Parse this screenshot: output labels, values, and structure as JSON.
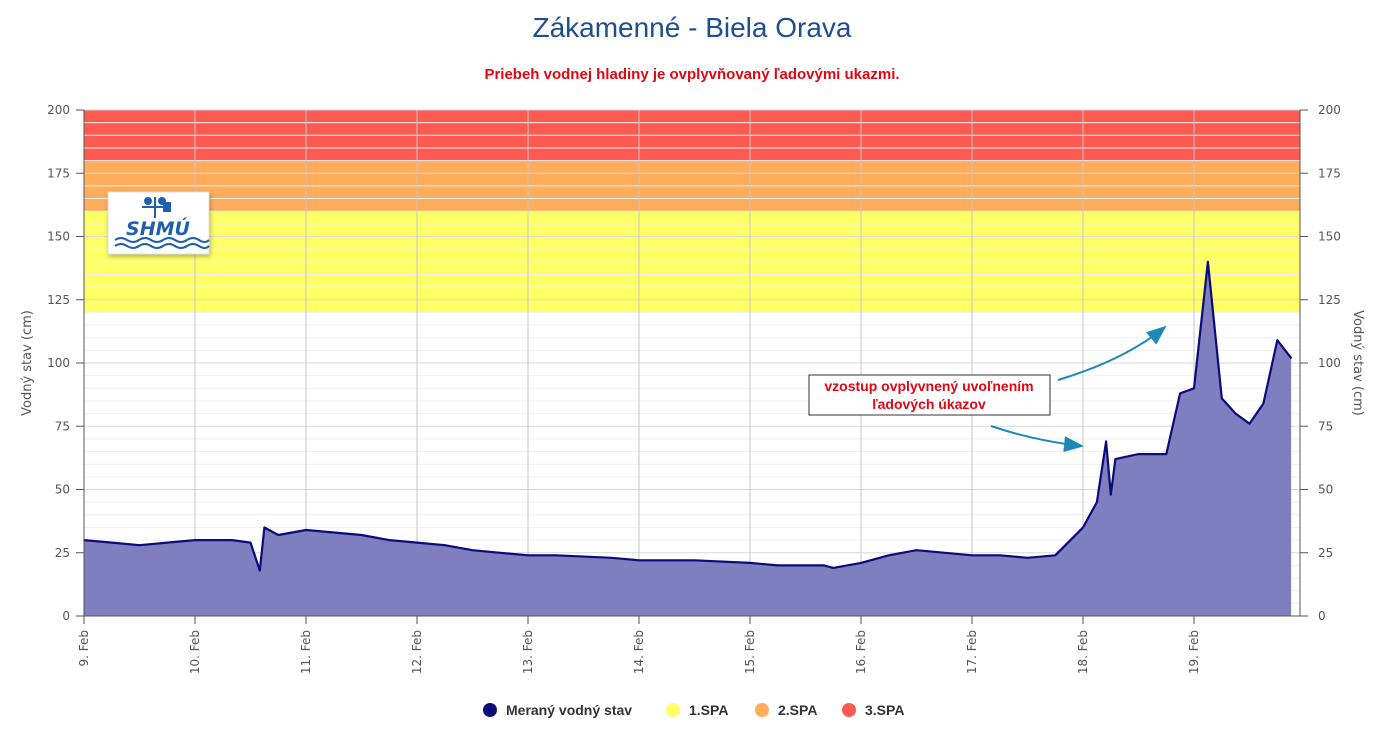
{
  "chart_data": {
    "type": "area",
    "title": "Zákamenné - Biela Orava",
    "subtitle": "Priebeh vodnej hladiny je ovplyvňovaný ľadovými ukazmi.",
    "ylabel": "Vodný stav (cm)",
    "ylabel_right": "Vodný stav (cm)",
    "ylim": [
      0,
      200
    ],
    "y_ticks": [
      0,
      25,
      50,
      75,
      100,
      125,
      150,
      175,
      200
    ],
    "xlim": [
      "9. Feb",
      "19.9 Feb"
    ],
    "x_ticks": [
      "9. Feb",
      "10. Feb",
      "11. Feb",
      "12. Feb",
      "13. Feb",
      "14. Feb",
      "15. Feb",
      "16. Feb",
      "17. Feb",
      "18. Feb",
      "19. Feb"
    ],
    "grid": true,
    "legend_position": "bottom-center",
    "bands": [
      {
        "name": "1.SPA",
        "from": 120,
        "to": 160,
        "color": "#ffff66"
      },
      {
        "name": "2.SPA",
        "from": 160,
        "to": 180,
        "color": "#ffad5a"
      },
      {
        "name": "3.SPA",
        "from": 180,
        "to": 200,
        "color": "#ff5a52"
      }
    ],
    "series": [
      {
        "name": "Meraný vodný stav",
        "color": "#0b0b7a",
        "fill": "#7f7fc0",
        "x": [
          "9. Feb 00:00",
          "9. Feb 06:00",
          "9. Feb 12:00",
          "9. Feb 18:00",
          "10. Feb 00:00",
          "10. Feb 08:00",
          "10. Feb 12:00",
          "10. Feb 14:00",
          "10. Feb 15:00",
          "10. Feb 18:00",
          "11. Feb 00:00",
          "11. Feb 12:00",
          "11. Feb 18:00",
          "12. Feb 00:00",
          "12. Feb 06:00",
          "12. Feb 12:00",
          "12. Feb 18:00",
          "13. Feb 00:00",
          "13. Feb 06:00",
          "13. Feb 18:00",
          "14. Feb 00:00",
          "14. Feb 12:00",
          "15. Feb 00:00",
          "15. Feb 06:00",
          "15. Feb 12:00",
          "15. Feb 16:00",
          "15. Feb 18:00",
          "16. Feb 00:00",
          "16. Feb 06:00",
          "16. Feb 12:00",
          "17. Feb 00:00",
          "17. Feb 06:00",
          "17. Feb 12:00",
          "17. Feb 18:00",
          "18. Feb 00:00",
          "18. Feb 03:00",
          "18. Feb 05:00",
          "18. Feb 06:00",
          "18. Feb 07:00",
          "18. Feb 12:00",
          "18. Feb 18:00",
          "18. Feb 21:00",
          "19. Feb 00:00",
          "19. Feb 03:00",
          "19. Feb 06:00",
          "19. Feb 09:00",
          "19. Feb 12:00",
          "19. Feb 15:00",
          "19. Feb 18:00",
          "19. Feb 21:00"
        ],
        "values": [
          30,
          29,
          28,
          29,
          30,
          30,
          29,
          18,
          35,
          32,
          34,
          32,
          30,
          29,
          28,
          26,
          25,
          24,
          24,
          23,
          22,
          22,
          21,
          20,
          20,
          20,
          19,
          21,
          24,
          26,
          24,
          24,
          23,
          24,
          35,
          45,
          69,
          48,
          62,
          64,
          64,
          88,
          90,
          140,
          86,
          80,
          76,
          84,
          109,
          102
        ]
      }
    ],
    "annotations": [
      {
        "text_lines": [
          "vzostup ovplyvnený uvoľnením",
          "ľadových úkazov"
        ],
        "points_to": [
          {
            "x": "18. Feb 00:00",
            "y": 67
          },
          {
            "x": "18. Feb 18:00",
            "y": 115
          }
        ]
      }
    ],
    "legend": [
      {
        "name": "Meraný vodný stav",
        "color": "#0b0b7a"
      },
      {
        "name": "1.SPA",
        "color": "#ffff66"
      },
      {
        "name": "2.SPA",
        "color": "#ffad5a"
      },
      {
        "name": "3.SPA",
        "color": "#ff5a52"
      }
    ],
    "logo_text": "SHMÚ"
  }
}
